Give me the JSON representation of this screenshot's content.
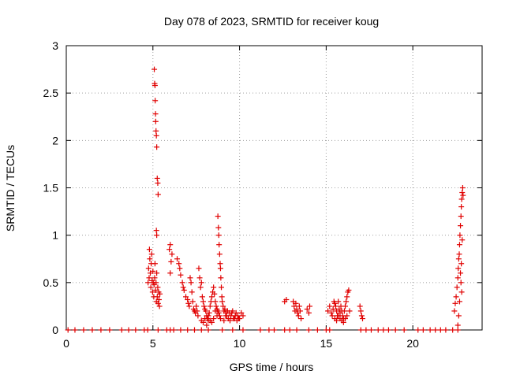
{
  "chart_data": {
    "type": "scatter",
    "title": "Day 078 of 2023, SRMTID for receiver koug",
    "xlabel": "GPS time / hours",
    "ylabel": "SRMTID / TECUs",
    "xlim": [
      0,
      24
    ],
    "ylim": [
      0,
      3
    ],
    "x_ticks": [
      "0",
      "5",
      "10",
      "15",
      "20"
    ],
    "x_tick_values": [
      0,
      5,
      10,
      15,
      20
    ],
    "y_ticks": [
      "0",
      "0.5",
      "1",
      "1.5",
      "2",
      "2.5",
      "3"
    ],
    "y_tick_values": [
      0,
      0.5,
      1,
      1.5,
      2,
      2.5,
      3
    ],
    "grid": true,
    "marker": "+",
    "color": "#e00000",
    "series": [
      {
        "name": "SRMTID",
        "x": [
          0.1,
          0.5,
          1.0,
          1.5,
          2.0,
          2.5,
          3.2,
          3.6,
          4.0,
          4.5,
          4.7,
          5.3,
          5.8,
          6.0,
          6.2,
          6.6,
          7.0,
          7.4,
          7.8,
          8.2,
          9.0,
          9.6,
          10.2,
          11.2,
          11.7,
          12.0,
          12.6,
          12.9,
          13.3,
          14.0,
          14.5,
          15.0,
          15.2,
          17.0,
          17.3,
          17.6,
          18.0,
          18.3,
          18.6,
          19.0,
          19.5,
          20.3,
          20.6,
          21.0,
          21.3,
          21.6,
          21.9,
          22.3,
          22.6,
          4.72,
          4.75,
          4.78,
          4.8,
          4.82,
          4.85,
          4.88,
          4.9,
          4.93,
          4.95,
          4.98,
          5.0,
          5.02,
          5.05,
          5.07,
          5.1,
          5.12,
          5.15,
          5.18,
          5.2,
          5.22,
          5.25,
          5.28,
          5.3,
          5.33,
          5.35,
          5.38,
          5.4,
          5.08,
          5.1,
          5.12,
          5.13,
          5.15,
          5.16,
          5.18,
          5.2,
          5.22,
          5.25,
          5.28,
          5.3,
          5.2,
          5.22,
          5.95,
          6.0,
          6.05,
          6.1,
          6.0,
          6.4,
          6.5,
          6.55,
          6.6,
          6.7,
          6.75,
          6.8,
          6.9,
          7.0,
          7.05,
          7.1,
          7.15,
          7.2,
          7.25,
          7.3,
          7.35,
          7.4,
          7.45,
          7.5,
          7.55,
          7.6,
          7.65,
          7.7,
          7.75,
          7.8,
          7.85,
          7.9,
          7.95,
          8.0,
          8.05,
          8.1,
          8.15,
          8.2,
          8.25,
          8.3,
          8.35,
          8.4,
          8.45,
          8.5,
          8.55,
          8.6,
          8.65,
          8.7,
          8.75,
          8.8,
          8.85,
          8.9,
          8.75,
          8.78,
          8.8,
          8.82,
          8.85,
          8.88,
          8.9,
          8.92,
          8.95,
          8.98,
          9.0,
          9.05,
          9.1,
          9.15,
          9.2,
          9.25,
          9.3,
          9.35,
          9.4,
          9.5,
          9.6,
          9.7,
          9.8,
          9.9,
          10.0,
          10.1,
          10.2,
          7.8,
          7.9,
          8.0,
          8.1,
          8.2,
          8.3,
          8.4,
          8.5,
          8.6,
          8.7,
          9.1,
          9.2,
          9.3,
          9.45,
          9.55,
          9.65,
          9.75,
          9.85,
          9.95,
          12.6,
          12.7,
          13.1,
          13.15,
          13.2,
          13.25,
          13.3,
          13.35,
          13.4,
          13.45,
          13.5,
          13.55,
          13.9,
          14.0,
          14.05,
          15.1,
          15.2,
          15.3,
          15.35,
          15.4,
          15.45,
          15.5,
          15.55,
          15.6,
          15.65,
          15.7,
          15.75,
          15.8,
          15.85,
          15.9,
          15.95,
          16.0,
          16.05,
          16.1,
          16.15,
          16.2,
          16.25,
          16.3,
          16.35,
          15.5,
          15.6,
          15.7,
          15.8,
          15.9,
          16.0,
          16.1,
          16.2,
          16.95,
          17.0,
          17.05,
          17.1,
          22.4,
          22.45,
          22.5,
          22.55,
          22.6,
          22.62,
          22.65,
          22.68,
          22.7,
          22.72,
          22.75,
          22.78,
          22.8,
          22.82,
          22.85,
          22.88,
          22.9,
          22.75,
          22.8,
          22.85,
          22.7,
          22.78,
          22.82,
          22.6,
          22.65
        ],
        "y": [
          0,
          0,
          0,
          0,
          0,
          0,
          0,
          0,
          0,
          0,
          0,
          0,
          0,
          0,
          0,
          0,
          0,
          0,
          0,
          0,
          0,
          0,
          0,
          0,
          0,
          0,
          0,
          0,
          0,
          0,
          0,
          0,
          0,
          0,
          0,
          0,
          0,
          0,
          0,
          0,
          0,
          0,
          0,
          0,
          0,
          0,
          0,
          0,
          0,
          0.5,
          0.65,
          0.55,
          0.85,
          0.75,
          0.6,
          0.45,
          0.7,
          0.8,
          0.52,
          0.4,
          0.62,
          0.5,
          0.35,
          0.48,
          0.55,
          0.7,
          0.42,
          0.5,
          0.3,
          0.6,
          0.35,
          0.45,
          0.28,
          0.4,
          0.32,
          0.25,
          0.38,
          2.75,
          2.6,
          2.58,
          2.42,
          2.28,
          2.2,
          2.1,
          2.05,
          1.93,
          1.6,
          1.55,
          1.43,
          1.05,
          1.0,
          0.85,
          0.9,
          0.72,
          0.8,
          0.6,
          0.75,
          0.7,
          0.65,
          0.58,
          0.5,
          0.45,
          0.42,
          0.35,
          0.32,
          0.28,
          0.25,
          0.55,
          0.5,
          0.4,
          0.3,
          0.22,
          0.2,
          0.18,
          0.25,
          0.2,
          0.15,
          0.65,
          0.55,
          0.45,
          0.5,
          0.35,
          0.3,
          0.25,
          0.22,
          0.2,
          0.15,
          0.12,
          0.1,
          0.18,
          0.25,
          0.3,
          0.35,
          0.4,
          0.45,
          0.38,
          0.3,
          0.25,
          0.22,
          0.2,
          0.18,
          0.15,
          0.12,
          1.2,
          1.08,
          1.0,
          0.9,
          0.8,
          0.7,
          0.65,
          0.55,
          0.45,
          0.35,
          0.3,
          0.25,
          0.2,
          0.22,
          0.18,
          0.15,
          0.2,
          0.12,
          0.18,
          0.15,
          0.2,
          0.12,
          0.18,
          0.15,
          0.12,
          0.18,
          0.15,
          0.1,
          0.08,
          0.12,
          0.05,
          0.15,
          0.1,
          0.08,
          0.12,
          0.2,
          0.15,
          0.1,
          0.15,
          0.2,
          0.1,
          0.18,
          0.12,
          0.15,
          0.1,
          0.12,
          0.3,
          0.32,
          0.3,
          0.25,
          0.2,
          0.28,
          0.22,
          0.18,
          0.15,
          0.25,
          0.2,
          0.12,
          0.22,
          0.18,
          0.25,
          0.2,
          0.25,
          0.18,
          0.15,
          0.22,
          0.3,
          0.28,
          0.25,
          0.2,
          0.15,
          0.3,
          0.22,
          0.18,
          0.25,
          0.2,
          0.15,
          0.12,
          0.2,
          0.25,
          0.3,
          0.35,
          0.4,
          0.42,
          0.2,
          0.12,
          0.1,
          0.15,
          0.12,
          0.1,
          0.08,
          0.12,
          0.15,
          0.25,
          0.2,
          0.15,
          0.12,
          0.2,
          0.28,
          0.35,
          0.45,
          0.55,
          0.65,
          0.75,
          0.8,
          0.9,
          1.0,
          1.1,
          1.2,
          1.3,
          1.38,
          1.45,
          1.5,
          1.42,
          0.6,
          0.7,
          0.95,
          0.3,
          0.5,
          0.4,
          0.05,
          0.15
        ]
      }
    ]
  }
}
